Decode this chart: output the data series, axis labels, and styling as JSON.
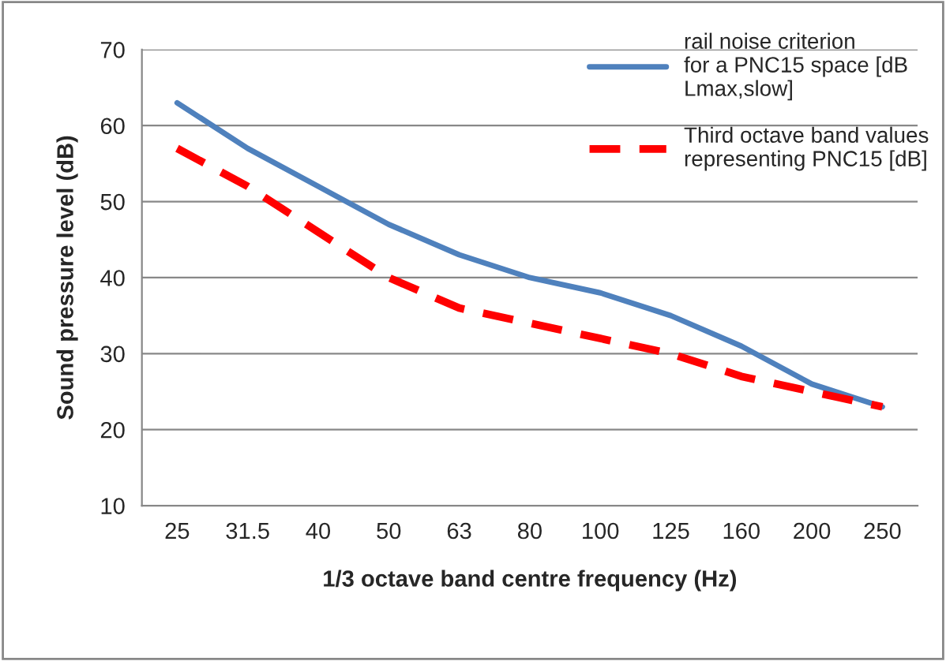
{
  "chart_data": {
    "type": "line",
    "xlabel": "1/3 octave band centre frequency (Hz)",
    "ylabel": "Sound pressure level (dB)",
    "categories": [
      "25",
      "31.5",
      "40",
      "50",
      "63",
      "80",
      "100",
      "125",
      "160",
      "200",
      "250"
    ],
    "series": [
      {
        "name": "rail noise criterion\nfor a PNC15 space [dB\nLmax,slow]",
        "color": "#4f81bd",
        "line_style": "solid",
        "values": [
          63,
          57,
          52,
          47,
          43,
          40,
          38,
          35,
          31,
          26,
          23
        ]
      },
      {
        "name": "Third octave band values\nrepresenting PNC15 [dB]",
        "color": "#ff0000",
        "line_style": "dashed",
        "values": [
          57,
          52,
          46,
          40,
          36,
          34,
          32,
          30,
          27,
          25,
          23
        ]
      }
    ],
    "ylim": [
      10,
      70
    ],
    "yticks": [
      10,
      20,
      30,
      40,
      50,
      60,
      70
    ],
    "grid": "y",
    "legend": "top right",
    "marker": "none"
  }
}
